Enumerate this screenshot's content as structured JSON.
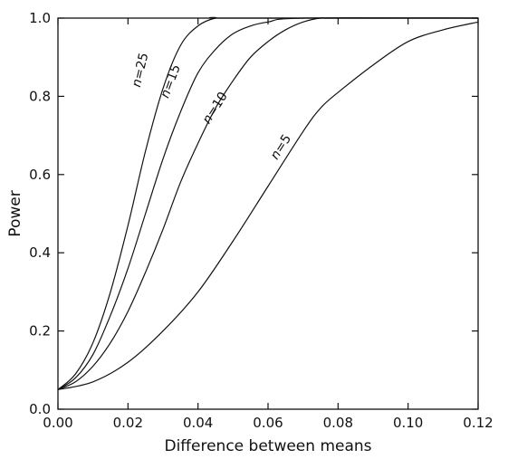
{
  "chart_data": {
    "type": "line",
    "title": "",
    "xlabel": "Difference between means",
    "ylabel": "Power",
    "xlim": [
      0,
      0.12
    ],
    "ylim": [
      0,
      1
    ],
    "xticks": [
      0.0,
      0.02,
      0.04,
      0.06,
      0.08,
      0.1,
      0.12
    ],
    "xtick_labels": [
      "0.00",
      "0.02",
      "0.04",
      "0.06",
      "0.08",
      "0.10",
      "0.12"
    ],
    "yticks": [
      0.0,
      0.2,
      0.4,
      0.6,
      0.8,
      1.0
    ],
    "ytick_labels": [
      "0.0",
      "0.2",
      "0.4",
      "0.6",
      "0.8",
      "1.0"
    ],
    "grid": false,
    "series": [
      {
        "name": "n=5",
        "label_parts": [
          "n",
          "=5"
        ],
        "x": [
          0,
          0.01,
          0.02,
          0.03,
          0.04,
          0.05,
          0.06,
          0.07,
          0.075,
          0.08,
          0.09,
          0.1,
          0.11,
          0.12
        ],
        "y": [
          0.05,
          0.07,
          0.12,
          0.2,
          0.3,
          0.43,
          0.57,
          0.71,
          0.77,
          0.81,
          0.88,
          0.94,
          0.97,
          0.99
        ]
      },
      {
        "name": "n=10",
        "label_parts": [
          "n",
          "=10"
        ],
        "x": [
          0,
          0.005,
          0.01,
          0.015,
          0.02,
          0.025,
          0.03,
          0.035,
          0.04,
          0.045,
          0.05,
          0.055,
          0.06,
          0.065,
          0.07,
          0.075,
          0.08,
          0.12
        ],
        "y": [
          0.05,
          0.07,
          0.11,
          0.17,
          0.25,
          0.35,
          0.46,
          0.58,
          0.68,
          0.77,
          0.84,
          0.9,
          0.94,
          0.97,
          0.99,
          1.0,
          1.0,
          1.0
        ]
      },
      {
        "name": "n=15",
        "label_parts": [
          "n",
          "=15"
        ],
        "x": [
          0,
          0.005,
          0.01,
          0.015,
          0.02,
          0.025,
          0.03,
          0.035,
          0.04,
          0.045,
          0.05,
          0.055,
          0.06,
          0.07,
          0.12
        ],
        "y": [
          0.05,
          0.08,
          0.14,
          0.24,
          0.36,
          0.5,
          0.64,
          0.76,
          0.86,
          0.92,
          0.96,
          0.98,
          0.99,
          1.0,
          1.0
        ]
      },
      {
        "name": "n=25",
        "label_parts": [
          "n",
          "=25"
        ],
        "x": [
          0,
          0.005,
          0.01,
          0.015,
          0.02,
          0.025,
          0.03,
          0.035,
          0.04,
          0.045,
          0.05,
          0.12
        ],
        "y": [
          0.05,
          0.09,
          0.17,
          0.3,
          0.47,
          0.66,
          0.82,
          0.93,
          0.98,
          1.0,
          1.0,
          1.0
        ]
      }
    ],
    "annotations": [
      {
        "series": "n=25",
        "x": 0.0246,
        "y": 0.865,
        "text_parts": [
          "n",
          "=25"
        ]
      },
      {
        "series": "n=15",
        "x": 0.0332,
        "y": 0.835,
        "text_parts": [
          "n",
          "=15"
        ]
      },
      {
        "series": "n=10",
        "x": 0.0458,
        "y": 0.765,
        "text_parts": [
          "n",
          "=10"
        ]
      },
      {
        "series": "n=5",
        "x": 0.0646,
        "y": 0.665,
        "text_parts": [
          "n",
          "=5"
        ]
      }
    ]
  }
}
